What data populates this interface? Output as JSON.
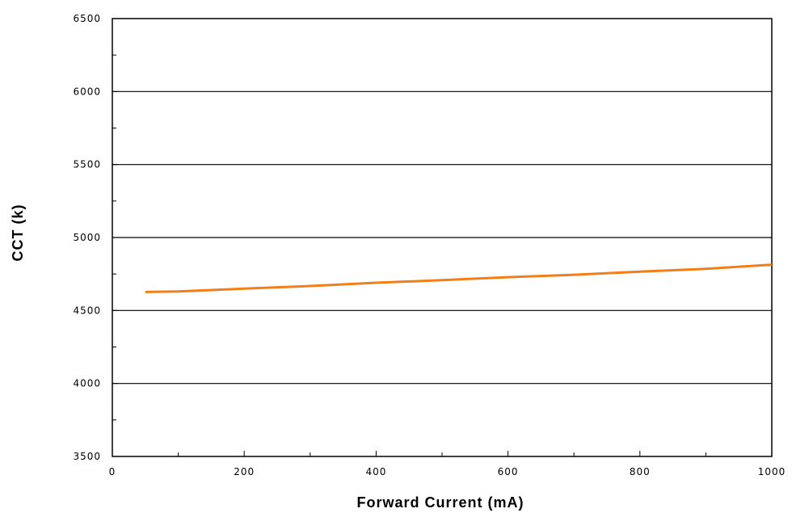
{
  "chart_data": {
    "type": "line",
    "xlabel": "Forward Current (mA)",
    "ylabel": "CCT (k)",
    "xlim": [
      0,
      1000
    ],
    "ylim": [
      3500,
      6500
    ],
    "x_ticks": [
      0,
      200,
      400,
      600,
      800,
      1000
    ],
    "x_tick_labels": [
      "0",
      "200",
      "400",
      "600",
      "800",
      "1000"
    ],
    "y_ticks": [
      3500,
      4000,
      4500,
      5000,
      5500,
      6000,
      6500
    ],
    "y_tick_labels": [
      "3500",
      "4000",
      "4500",
      "5000",
      "5500",
      "6000",
      "6500"
    ],
    "gridlines_y": [
      4000,
      4500,
      5000,
      5500,
      6000
    ],
    "grid": "horizontal",
    "legend": "none",
    "series": [
      {
        "color": "#f07f1a",
        "x": [
          50,
          100,
          200,
          300,
          400,
          500,
          600,
          700,
          800,
          900,
          1000
        ],
        "y": [
          4627,
          4630,
          4650,
          4668,
          4690,
          4708,
          4728,
          4745,
          4766,
          4785,
          4814
        ]
      }
    ]
  }
}
